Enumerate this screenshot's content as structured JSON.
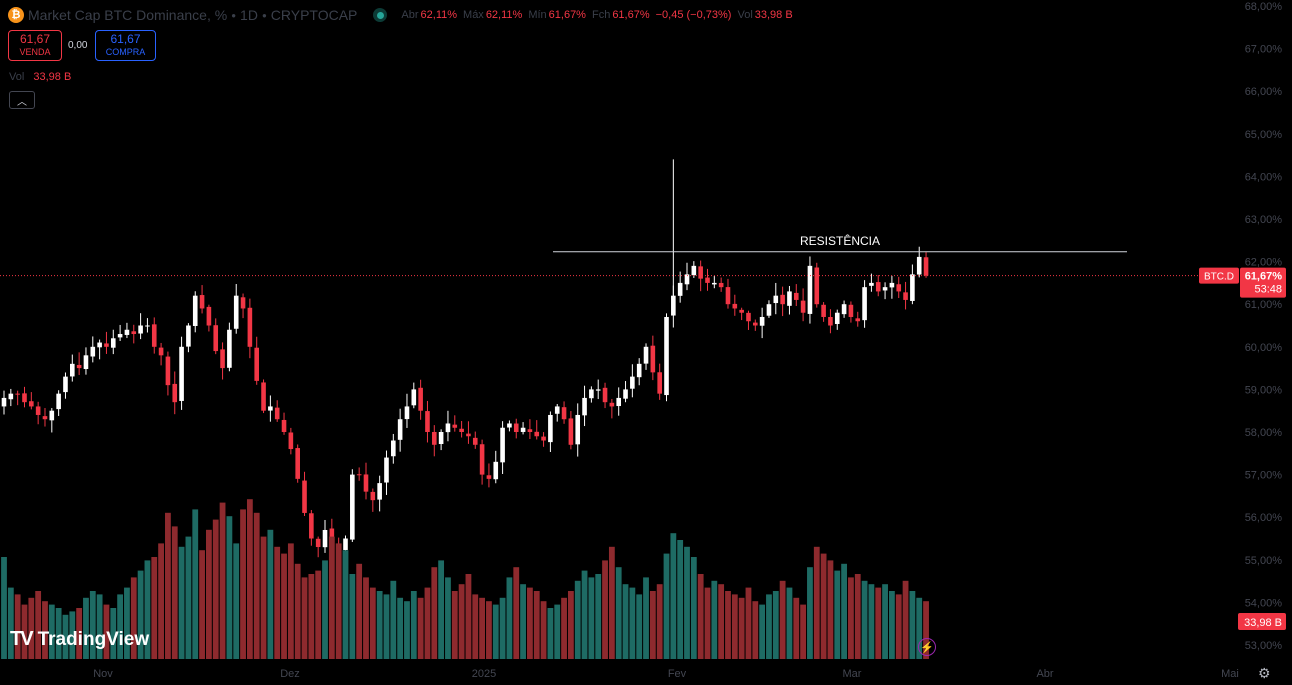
{
  "header": {
    "symbol_icon": "bitcoin-icon",
    "title": "Market Cap BTC Dominance, %",
    "interval": "1D",
    "exchange": "CRYPTOCAP",
    "open_label": "Abr",
    "open_value": "62,11%",
    "high_label": "Máx",
    "high_value": "62,11%",
    "low_label": "Mín",
    "low_value": "61,67%",
    "close_label": "Fch",
    "close_value": "61,67%",
    "change_value": "−0,45 (−0,73%)",
    "volume_label": "Vol",
    "volume_value": "33,98 B"
  },
  "trade": {
    "sell_price": "61,67",
    "sell_label": "VENDA",
    "spread": "0,00",
    "buy_price": "61,67",
    "buy_label": "COMPRA"
  },
  "volume_row": {
    "label": "Vol",
    "value": "33,98 B"
  },
  "collapse_icon": "chevron-up-icon",
  "logo_text": "TradingView",
  "colors": {
    "up": "#ffffff",
    "down": "#f23645",
    "vol_up": "#1e6b64",
    "vol_down": "#8e2a2e",
    "accent": "#f23645"
  },
  "chart_data": {
    "type": "candlestick",
    "title": "Market Cap BTC Dominance, %",
    "price_axis": {
      "min": 53,
      "max": 68,
      "ticks": [
        "68,00%",
        "67,00%",
        "66,00%",
        "65,00%",
        "64,00%",
        "63,00%",
        "62,00%",
        "61,00%",
        "60,00%",
        "59,00%",
        "58,00%",
        "57,00%",
        "56,00%",
        "55,00%",
        "54,00%",
        "53,00%"
      ]
    },
    "time_labels": [
      "Nov",
      "Dez",
      "2025",
      "Fev",
      "Mar",
      "Abr",
      "Mai"
    ],
    "resistance": {
      "label": "RESISTÊNCIA",
      "value": 62.23
    },
    "last_price": {
      "symbol": "BTC.D",
      "value": "61,67%",
      "countdown": "53:48",
      "numeric": 61.67
    },
    "volume_label": "33,98 B",
    "close_series": [
      58.8,
      58.9,
      58.9,
      58.7,
      58.6,
      58.4,
      58.3,
      58.5,
      58.9,
      59.3,
      59.6,
      59.5,
      59.8,
      60.0,
      60.1,
      60.0,
      60.2,
      60.3,
      60.4,
      60.3,
      60.5,
      60.5,
      60.0,
      59.8,
      59.1,
      58.7,
      60.0,
      60.5,
      61.2,
      60.9,
      60.5,
      59.9,
      59.5,
      60.4,
      61.2,
      60.9,
      60.0,
      59.2,
      58.5,
      58.6,
      58.3,
      58.0,
      57.6,
      56.9,
      56.1,
      55.5,
      55.3,
      55.7,
      55.4,
      55.2,
      55.5,
      57.0,
      57.0,
      56.6,
      56.4,
      56.8,
      57.4,
      57.8,
      58.3,
      58.6,
      59.0,
      58.5,
      58.0,
      57.7,
      58.0,
      58.2,
      58.1,
      58.0,
      57.9,
      57.7,
      57.0,
      56.9,
      57.3,
      58.1,
      58.2,
      58.0,
      58.1,
      58.0,
      57.9,
      57.8,
      58.4,
      58.6,
      58.3,
      57.7,
      58.4,
      58.8,
      59.0,
      59.0,
      58.7,
      58.6,
      58.8,
      59.0,
      59.3,
      59.6,
      60.0,
      59.4,
      58.9,
      60.7,
      61.2,
      61.5,
      61.7,
      61.9,
      61.6,
      61.5,
      61.5,
      61.4,
      61.0,
      60.9,
      60.8,
      60.6,
      60.5,
      60.7,
      61.0,
      61.2,
      61.0,
      61.3,
      61.1,
      60.8,
      61.9,
      61.0,
      60.7,
      60.5,
      60.8,
      61.0,
      60.7,
      60.6,
      61.4,
      61.5,
      61.3,
      61.4,
      61.5,
      61.3,
      61.1,
      61.7,
      62.11,
      61.67
    ],
    "volume_series": [
      3.0,
      2.1,
      1.9,
      1.6,
      1.8,
      2.0,
      1.7,
      1.6,
      1.5,
      1.3,
      1.4,
      1.5,
      1.8,
      2.0,
      1.9,
      1.6,
      1.5,
      1.9,
      2.1,
      2.4,
      2.6,
      2.9,
      3.0,
      3.4,
      4.3,
      3.9,
      3.3,
      3.6,
      4.4,
      3.2,
      3.8,
      4.1,
      4.6,
      4.2,
      3.4,
      4.4,
      4.7,
      4.3,
      3.6,
      3.8,
      3.3,
      3.1,
      3.4,
      2.8,
      2.4,
      2.5,
      2.6,
      2.9,
      3.6,
      3.4,
      3.2,
      2.5,
      2.8,
      2.4,
      2.1,
      2.0,
      1.9,
      2.3,
      1.8,
      1.7,
      2.0,
      1.8,
      2.1,
      2.7,
      2.9,
      2.4,
      2.0,
      2.2,
      2.5,
      1.9,
      1.8,
      1.7,
      1.6,
      1.8,
      2.4,
      2.7,
      2.2,
      2.1,
      2.0,
      1.7,
      1.5,
      1.6,
      1.8,
      2.0,
      2.3,
      2.6,
      2.4,
      2.5,
      2.9,
      3.3,
      2.7,
      2.2,
      2.1,
      1.9,
      2.4,
      2.0,
      2.2,
      3.1,
      3.7,
      3.5,
      3.3,
      3.0,
      2.5,
      2.1,
      2.3,
      2.2,
      2.0,
      1.9,
      1.8,
      2.1,
      1.7,
      1.6,
      1.9,
      2.0,
      2.3,
      2.1,
      1.8,
      1.6,
      2.7,
      3.3,
      3.1,
      2.9,
      2.6,
      2.8,
      2.4,
      2.5,
      2.3,
      2.2,
      2.1,
      2.2,
      2.0,
      1.9,
      2.3,
      2.0,
      1.8,
      1.7
    ]
  }
}
